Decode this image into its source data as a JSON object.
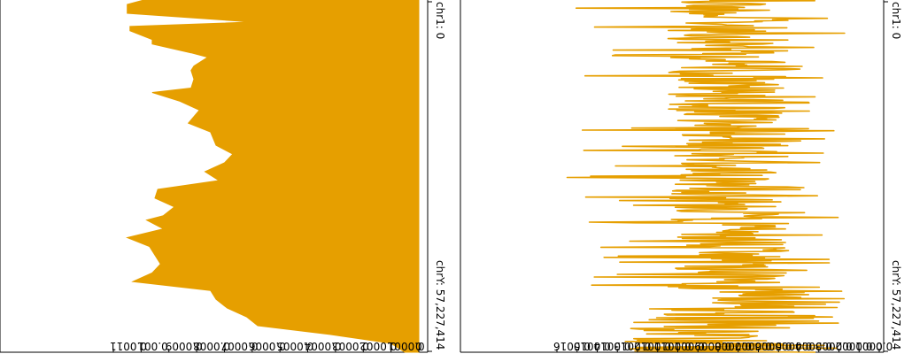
{
  "chart_data": [
    {
      "type": "area",
      "orientation": "mirrored-vertical",
      "color": "#e69f00",
      "xlim": [
        0,
        0.0011
      ],
      "ticks": [
        {
          "value": 0,
          "label": "0"
        },
        {
          "value": 0.0001,
          "label": "0.0001"
        },
        {
          "value": 0.0002,
          "label": "0.0002"
        },
        {
          "value": 0.0003,
          "label": "0.0003"
        },
        {
          "value": 0.0004,
          "label": "0.0004"
        },
        {
          "value": 0.0005,
          "label": "0.0005"
        },
        {
          "value": 0.0006,
          "label": "0.0006"
        },
        {
          "value": 0.0007,
          "label": "0.0007"
        },
        {
          "value": 0.0008,
          "label": "0.0008"
        },
        {
          "value": 0.0009,
          "label": "0.0009"
        },
        {
          "value": 0.001,
          "label": "0.001"
        },
        {
          "value": 0.0011,
          "label": "0.0011"
        }
      ],
      "chrom_start_label": "chr1: 0",
      "chrom_end_label": "chrY: 57,227,414",
      "ylim": [
        0,
        57227414
      ],
      "position_unit": "bp",
      "points": [
        [
          0,
          0.00099
        ],
        [
          720000,
          0.00105
        ],
        [
          2160000,
          0.00105
        ],
        [
          3580000,
          0.0006
        ],
        [
          4290000,
          0.00104
        ],
        [
          5000000,
          0.00104
        ],
        [
          6430000,
          0.00096
        ],
        [
          7150000,
          0.00096
        ],
        [
          8580000,
          0.00082
        ],
        [
          9300000,
          0.00076
        ],
        [
          10730000,
          0.00081
        ],
        [
          11440000,
          0.00082
        ],
        [
          12870000,
          0.00081
        ],
        [
          14300000,
          0.00082
        ],
        [
          15020000,
          0.00096
        ],
        [
          16450000,
          0.00086
        ],
        [
          17880000,
          0.00079
        ],
        [
          20020000,
          0.00083
        ],
        [
          21460000,
          0.00075
        ],
        [
          23600000,
          0.00073
        ],
        [
          25030000,
          0.00067
        ],
        [
          26460000,
          0.0007
        ],
        [
          27890000,
          0.00077
        ],
        [
          29330000,
          0.00072
        ],
        [
          30750000,
          0.00094
        ],
        [
          32190000,
          0.00095
        ],
        [
          33620000,
          0.00088
        ],
        [
          35040000,
          0.00092
        ],
        [
          35760000,
          0.00098
        ],
        [
          37190000,
          0.00092
        ],
        [
          38610000,
          0.00105
        ],
        [
          40040000,
          0.00097
        ],
        [
          41470000,
          0.00095
        ],
        [
          42900000,
          0.00093
        ],
        [
          44330000,
          0.00096
        ],
        [
          45760000,
          0.00103
        ],
        [
          47190000,
          0.00075
        ],
        [
          48620000,
          0.00073
        ],
        [
          50050000,
          0.00069
        ],
        [
          51480000,
          0.00062
        ],
        [
          52910000,
          0.00058
        ],
        [
          54340000,
          0.00032
        ],
        [
          55770000,
          0.0001
        ],
        [
          57227414,
          5e-05
        ]
      ]
    },
    {
      "type": "line",
      "orientation": "mirrored-vertical",
      "color": "#e69f00",
      "xlim": [
        0,
        0.0016
      ],
      "ticks": [
        {
          "value": 0,
          "label": "0"
        },
        {
          "value": 0.0001,
          "label": "0.0001"
        },
        {
          "value": 0.0002,
          "label": "0.0002"
        },
        {
          "value": 0.0003,
          "label": "0.0003"
        },
        {
          "value": 0.0004,
          "label": "0.0004"
        },
        {
          "value": 0.0005,
          "label": "0.0005"
        },
        {
          "value": 0.0006,
          "label": "0.0006"
        },
        {
          "value": 0.0007,
          "label": "0.0007"
        },
        {
          "value": 0.0008,
          "label": "0.0008"
        },
        {
          "value": 0.0009,
          "label": "0.0009"
        },
        {
          "value": 0.001,
          "label": "0.001"
        },
        {
          "value": 0.0011,
          "label": "0.0011"
        },
        {
          "value": 0.0012,
          "label": "0.0012"
        },
        {
          "value": 0.0013,
          "label": "0.0013"
        },
        {
          "value": 0.0014,
          "label": "0.0014"
        },
        {
          "value": 0.0015,
          "label": "0.0015"
        },
        {
          "value": 0.0016,
          "label": "0.0016"
        }
      ],
      "chrom_start_label": "chr1: 0",
      "chrom_end_label": "chrY: 57,227,414",
      "ylim": [
        0,
        57227414
      ],
      "position_unit": "bp"
    }
  ]
}
